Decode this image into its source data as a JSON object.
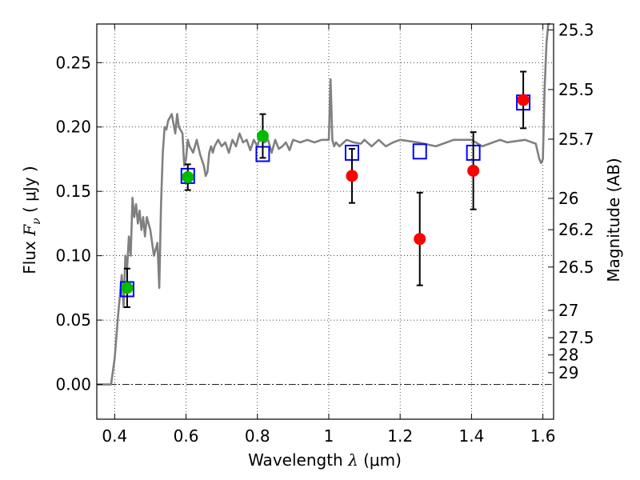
{
  "chart_data": {
    "type": "scatter",
    "xlabel": "Wavelength",
    "xlabel_symbol": "λ",
    "xlabel_unit": "(μm)",
    "ylabel": "Flux",
    "ylabel_symbol": "F",
    "ylabel_subscript": "ν",
    "ylabel_unit": "( μJy )",
    "y2label": "Magnitude (AB)",
    "xlim": [
      0.35,
      1.63
    ],
    "ylim": [
      -0.027,
      0.28
    ],
    "grid": true,
    "x_ticks": [
      0.4,
      0.6,
      0.8,
      1.0,
      1.2,
      1.4,
      1.6
    ],
    "x_tick_labels": [
      "0.4",
      "0.6",
      "0.8",
      "1",
      "1.2",
      "1.4",
      "1.6"
    ],
    "y_ticks": [
      0.0,
      0.05,
      0.1,
      0.15,
      0.2,
      0.25
    ],
    "y_tick_labels": [
      "0.00",
      "0.05",
      "0.10",
      "0.15",
      "0.20",
      "0.25"
    ],
    "mag_ticks": [
      {
        "mag": 25.3,
        "label": "25.3"
      },
      {
        "mag": 25.5,
        "label": "25.5"
      },
      {
        "mag": 25.7,
        "label": "25.7"
      },
      {
        "mag": 26.0,
        "label": "26"
      },
      {
        "mag": 26.2,
        "label": "26.2"
      },
      {
        "mag": 26.5,
        "label": "26.5"
      },
      {
        "mag": 27.0,
        "label": "27"
      },
      {
        "mag": 27.5,
        "label": "27.5"
      },
      {
        "mag": 28.0,
        "label": "28"
      },
      {
        "mag": 29.0,
        "label": "29"
      }
    ],
    "series": [
      {
        "name": "model SED",
        "kind": "line",
        "color": "#808080",
        "x": [
          0.35,
          0.39,
          0.4,
          0.41,
          0.42,
          0.425,
          0.43,
          0.435,
          0.44,
          0.445,
          0.45,
          0.455,
          0.46,
          0.465,
          0.47,
          0.475,
          0.48,
          0.485,
          0.49,
          0.5,
          0.51,
          0.52,
          0.525,
          0.53,
          0.535,
          0.54,
          0.545,
          0.55,
          0.56,
          0.57,
          0.575,
          0.58,
          0.59,
          0.595,
          0.6,
          0.605,
          0.61,
          0.62,
          0.63,
          0.64,
          0.65,
          0.655,
          0.66,
          0.665,
          0.67,
          0.675,
          0.68,
          0.69,
          0.7,
          0.71,
          0.72,
          0.73,
          0.74,
          0.75,
          0.76,
          0.77,
          0.78,
          0.79,
          0.8,
          0.81,
          0.82,
          0.83,
          0.84,
          0.85,
          0.86,
          0.87,
          0.88,
          0.89,
          0.9,
          0.92,
          0.94,
          0.96,
          0.98,
          1.0,
          1.005,
          1.01,
          1.015,
          1.02,
          1.03,
          1.05,
          1.07,
          1.09,
          1.1,
          1.12,
          1.14,
          1.16,
          1.18,
          1.2,
          1.25,
          1.3,
          1.35,
          1.4,
          1.43,
          1.45,
          1.48,
          1.5,
          1.55,
          1.58,
          1.59,
          1.595,
          1.6,
          1.605,
          1.61,
          1.615,
          1.62
        ],
        "y": [
          0.0,
          0.0,
          0.02,
          0.055,
          0.085,
          0.06,
          0.1,
          0.09,
          0.115,
          0.1,
          0.145,
          0.13,
          0.14,
          0.125,
          0.135,
          0.12,
          0.13,
          0.115,
          0.13,
          0.12,
          0.1,
          0.11,
          0.075,
          0.14,
          0.18,
          0.2,
          0.198,
          0.205,
          0.21,
          0.195,
          0.21,
          0.2,
          0.195,
          0.17,
          0.175,
          0.19,
          0.185,
          0.18,
          0.19,
          0.178,
          0.17,
          0.162,
          0.165,
          0.18,
          0.185,
          0.18,
          0.185,
          0.19,
          0.185,
          0.188,
          0.18,
          0.19,
          0.185,
          0.195,
          0.188,
          0.19,
          0.182,
          0.19,
          0.185,
          0.195,
          0.188,
          0.19,
          0.18,
          0.19,
          0.183,
          0.185,
          0.188,
          0.182,
          0.19,
          0.188,
          0.19,
          0.188,
          0.19,
          0.19,
          0.237,
          0.19,
          0.185,
          0.188,
          0.185,
          0.19,
          0.188,
          0.187,
          0.19,
          0.185,
          0.19,
          0.185,
          0.188,
          0.19,
          0.188,
          0.185,
          0.19,
          0.19,
          0.185,
          0.187,
          0.19,
          0.188,
          0.19,
          0.187,
          0.175,
          0.172,
          0.175,
          0.23,
          0.265,
          0.28,
          0.28
        ]
      },
      {
        "name": "model photometry",
        "kind": "open-square",
        "color": "#0000ff",
        "x": [
          0.435,
          0.605,
          0.815,
          1.065,
          1.255,
          1.405,
          1.545
        ],
        "y": [
          0.074,
          0.162,
          0.179,
          0.18,
          0.181,
          0.18,
          0.219
        ]
      },
      {
        "name": "photometry (green)",
        "kind": "filled-circle",
        "color": "#00bb00",
        "x": [
          0.435,
          0.605,
          0.815
        ],
        "y": [
          0.075,
          0.161,
          0.193
        ],
        "yerr": [
          0.015,
          0.01,
          0.017
        ]
      },
      {
        "name": "photometry (red)",
        "kind": "filled-circle",
        "color": "#ff0000",
        "x": [
          1.065,
          1.255,
          1.405,
          1.545
        ],
        "y": [
          0.162,
          0.113,
          0.166,
          0.221
        ],
        "yerr": [
          0.021,
          0.036,
          0.03,
          0.022
        ]
      }
    ]
  }
}
